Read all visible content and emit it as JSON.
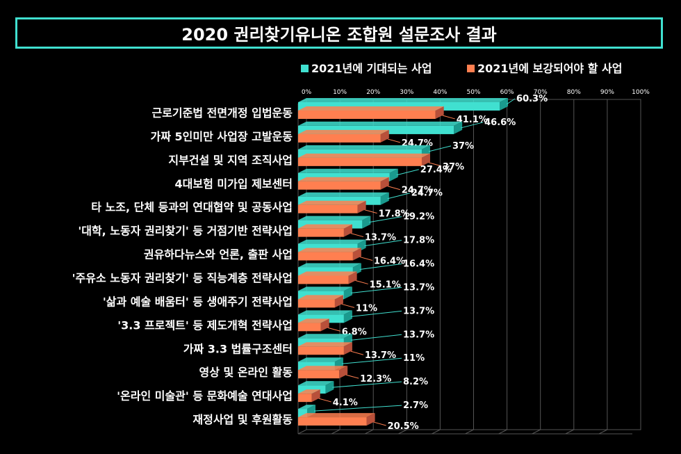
{
  "chart_data": {
    "type": "bar",
    "orientation": "horizontal",
    "title": "2020 권리찾기유니온 조합원 설문조사 결과",
    "categories": [
      "근로기준법 전면개정 입법운동",
      "가짜 5인미만 사업장 고발운동",
      "지부건설 및 지역 조직사업",
      "4대보험 미가입 제보센터",
      "타 노조, 단체 등과의 연대협약 및 공동사업",
      "'대학, 노동자 권리찾기' 등 거점기반 전략사업",
      "권유하다뉴스와 언론, 출판 사업",
      "'주유소 노동자 권리찾기' 등 직능계층 전략사업",
      "'삶과 예술 배움터' 등 생애주기 전략사업",
      "'3.3 프로젝트' 등 제도개혁 전략사업",
      "가짜 3.3 법률구조센터",
      "영상 및 온라인 활동",
      "'온라인 미술관' 등 문화예술 연대사업",
      "재정사업 및 후원활동"
    ],
    "series": [
      {
        "name": "2021년에 기대되는 사업",
        "color": "#40e0d0",
        "values": [
          60.3,
          46.6,
          37,
          27.4,
          24.7,
          19.2,
          17.8,
          16.4,
          13.7,
          13.7,
          13.7,
          11,
          8.2,
          2.7
        ],
        "labels": [
          "60.3%",
          "46.6%",
          "37%",
          "27.4%",
          "24.7%",
          "19.2%",
          "17.8%",
          "16.4%",
          "13.7%",
          "13.7%",
          "13.7%",
          "11%",
          "8.2%",
          "2.7%"
        ]
      },
      {
        "name": "2021년에 보강되어야 할 사업",
        "color": "#ff7f50",
        "values": [
          41.1,
          24.7,
          37,
          24.7,
          17.8,
          13.7,
          16.4,
          15.1,
          11,
          6.8,
          13.7,
          12.3,
          4.1,
          20.5
        ],
        "labels": [
          "41.1%",
          "24.7%",
          "37%",
          "24.7%",
          "17.8%",
          "13.7%",
          "16.4%",
          "15.1%",
          "11%",
          "6.8%",
          "13.7%",
          "12.3%",
          "4.1%",
          "20.5%"
        ]
      }
    ],
    "x_ticks": [
      "0%",
      "10%",
      "20%",
      "30%",
      "40%",
      "50%",
      "60%",
      "70%",
      "80%",
      "90%",
      "100%"
    ],
    "xlim": [
      0,
      100
    ],
    "grid": true,
    "legend_position": "top-right"
  }
}
